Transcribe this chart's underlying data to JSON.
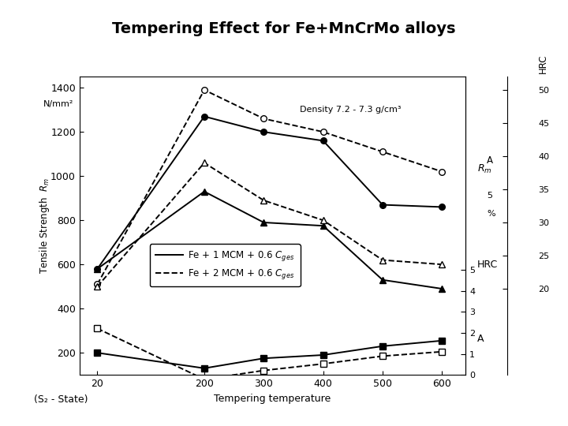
{
  "title": "Tempering Effect for Fe+MnCrMo alloys",
  "xlabel": "Tempering temperature",
  "s2_state": "(S₂ - State)",
  "density_text": "Density 7.2 - 7.3 g/cm³",
  "x": [
    20,
    200,
    300,
    400,
    500,
    600
  ],
  "ylim": [
    100,
    1450
  ],
  "yticks": [
    200,
    400,
    600,
    800,
    1000,
    1200,
    1400
  ],
  "xticks": [
    20,
    200,
    300,
    400,
    500,
    600
  ],
  "xlim": [
    -10,
    640
  ],
  "solid_Rm": [
    580,
    1270,
    1200,
    1160,
    870,
    860
  ],
  "dashed_Rm": [
    510,
    1390,
    1260,
    1200,
    1110,
    1020
  ],
  "solid_HRC": [
    580,
    930,
    790,
    775,
    530,
    490
  ],
  "dashed_HRC": [
    500,
    1060,
    890,
    800,
    620,
    600
  ],
  "solid_A": [
    200,
    130,
    175,
    190,
    230,
    255
  ],
  "dashed_A": [
    310,
    80,
    120,
    150,
    185,
    205
  ],
  "hrc_ticks": [
    20,
    25,
    30,
    35,
    40,
    45,
    50
  ],
  "hrc_y": [
    490,
    640,
    790,
    940,
    1090,
    1240,
    1390
  ],
  "a_ticks": [
    0,
    1,
    2,
    3,
    4,
    5
  ],
  "a_y": [
    100,
    195,
    290,
    385,
    480,
    575
  ],
  "bg_color": "#ffffff"
}
